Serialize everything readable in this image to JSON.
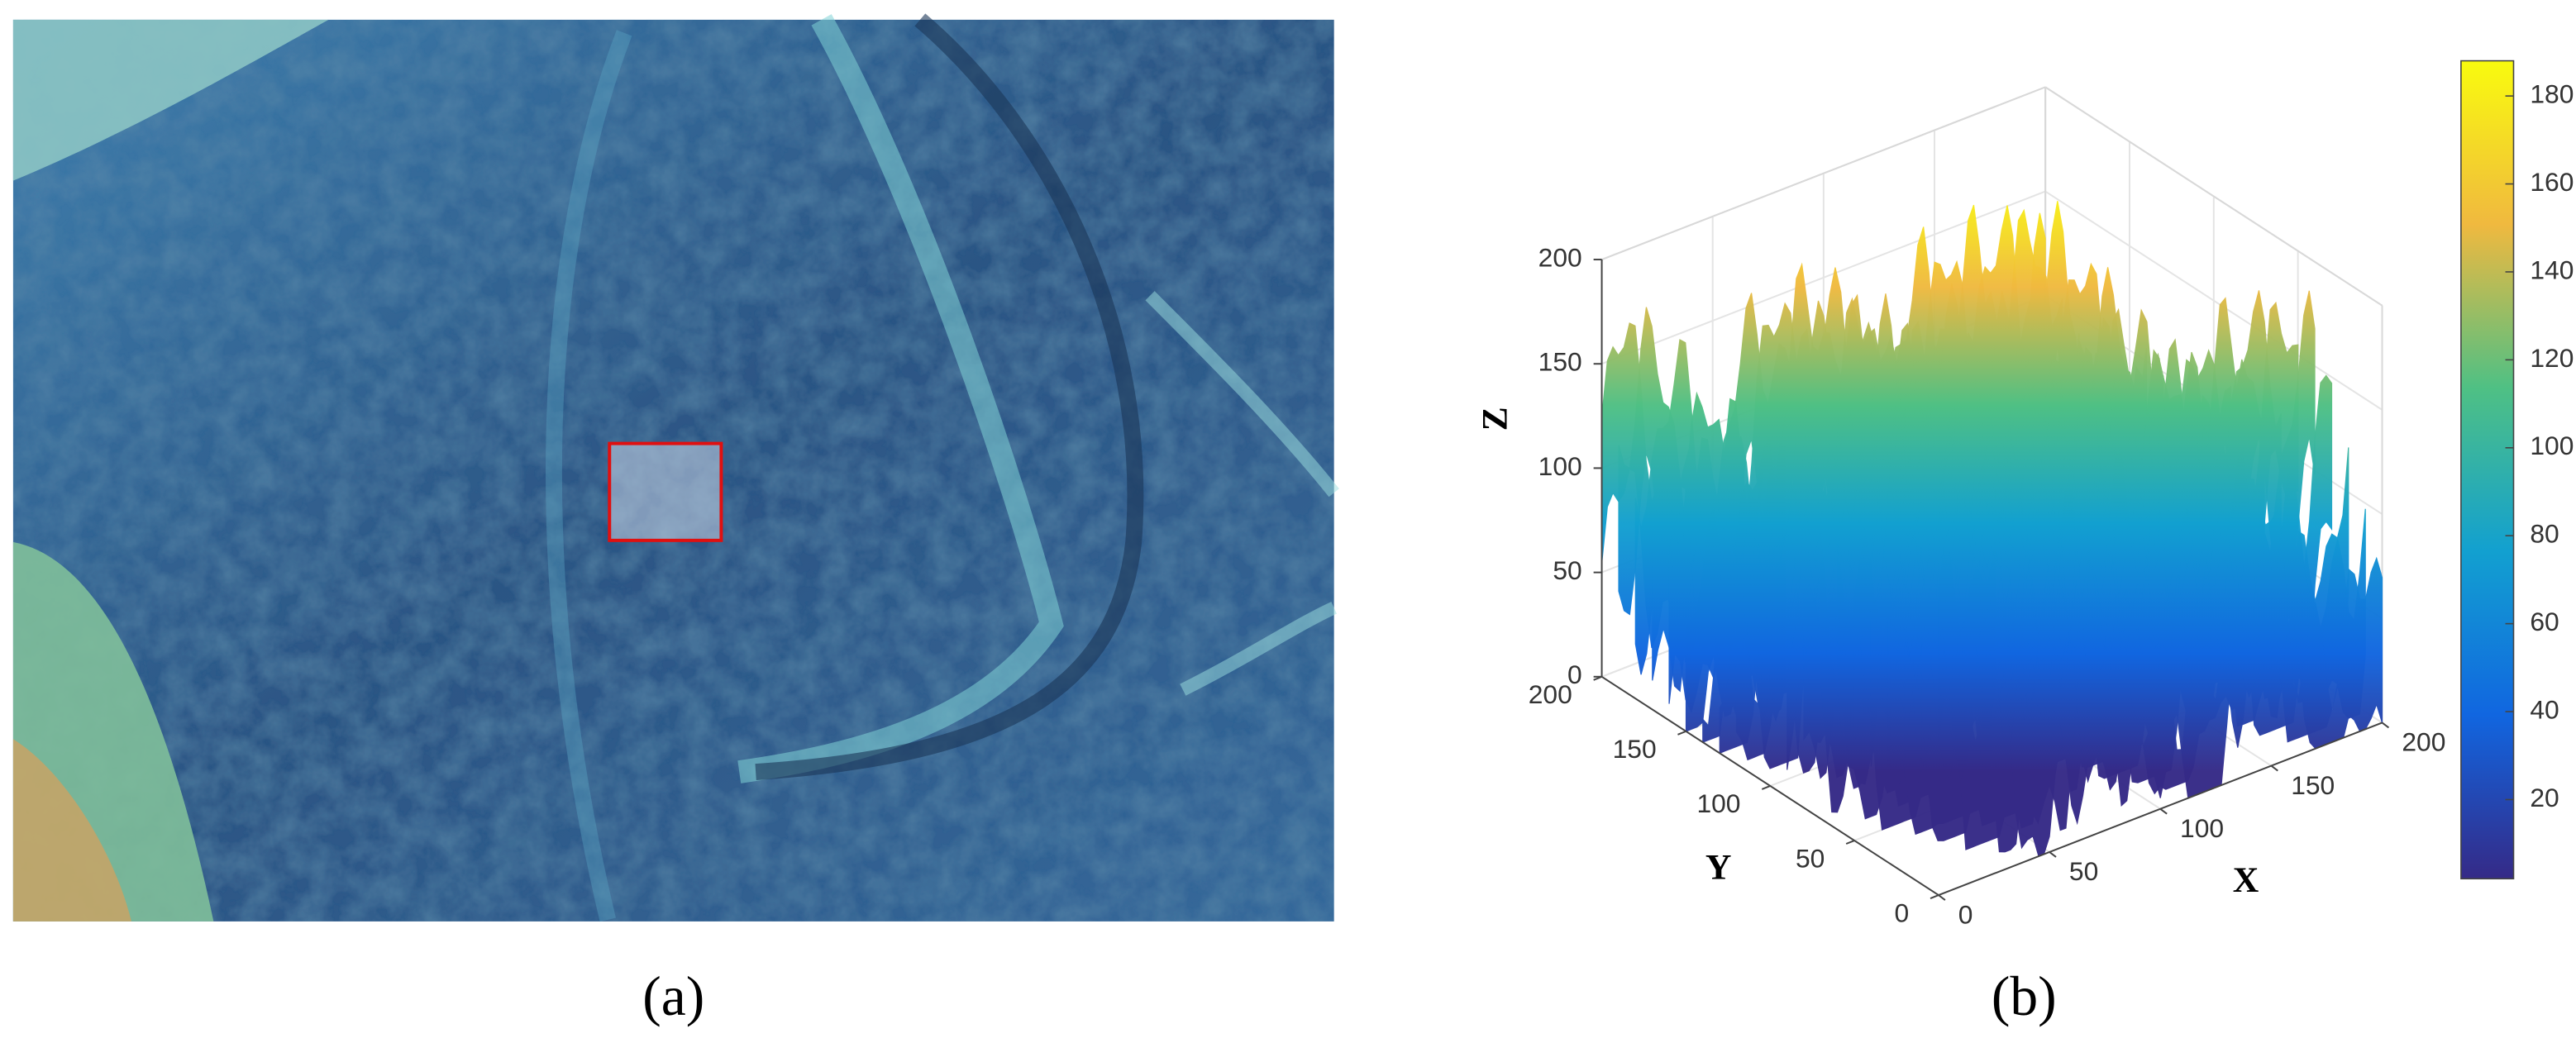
{
  "captions": [
    "(a)",
    "(b)"
  ],
  "chart_data": {
    "type": "surface",
    "xlabel": "X",
    "ylabel": "Y",
    "zlabel": "Z",
    "xlim": [
      0,
      200
    ],
    "xticks": [
      0,
      50,
      100,
      150,
      200
    ],
    "ylim": [
      0,
      200
    ],
    "yticks": [
      0,
      50,
      100,
      150,
      200
    ],
    "zlim": [
      0,
      200
    ],
    "zticks": [
      0,
      50,
      100,
      150,
      200
    ],
    "colorbar": {
      "lim": [
        2,
        188
      ],
      "ticks": [
        20,
        40,
        60,
        80,
        100,
        120,
        140,
        160,
        180
      ]
    },
    "grid": true
  }
}
